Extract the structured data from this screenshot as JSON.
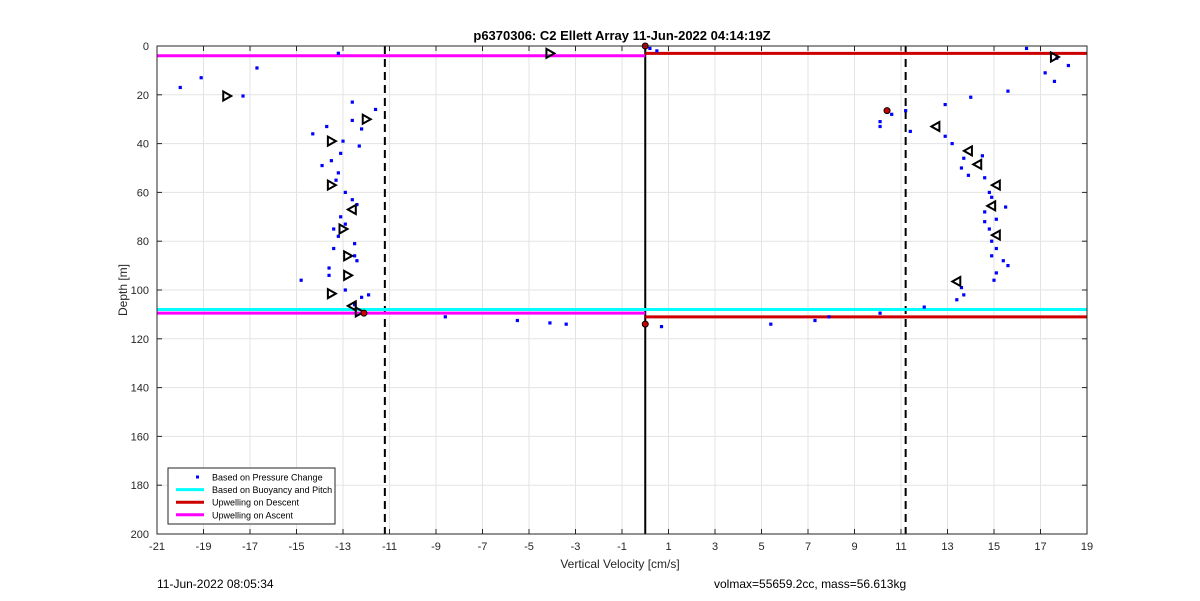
{
  "footer": {
    "timestamp": "11-Jun-2022 08:05:34",
    "info": "volmax=55659.2cc, mass=56.613kg"
  },
  "chart_data": {
    "type": "scatter",
    "title": "p6370306: C2 Ellett Array 11-Jun-2022 04:14:19Z",
    "xlabel": "Vertical Velocity [cm/s]",
    "ylabel": "Depth [m]",
    "xlim": [
      -21,
      19
    ],
    "ylim": [
      200,
      0
    ],
    "y_reversed": true,
    "xticks": [
      -21,
      -19,
      -17,
      -15,
      -13,
      -11,
      -9,
      -7,
      -5,
      -3,
      -1,
      1,
      3,
      5,
      7,
      9,
      11,
      13,
      15,
      17,
      19
    ],
    "yticks": [
      0,
      20,
      40,
      60,
      80,
      100,
      120,
      140,
      160,
      180,
      200
    ],
    "grid": true,
    "legend_position": "bottom-left",
    "legend": [
      {
        "label": "Based on Pressure Change",
        "kind": "dot",
        "color": "#0000ff"
      },
      {
        "label": "Based on Buoyancy and Pitch",
        "kind": "line",
        "color": "#00ffff"
      },
      {
        "label": "Upwelling on Descent",
        "kind": "line",
        "color": "#cc0000"
      },
      {
        "label": "Upwelling on Ascent",
        "kind": "line",
        "color": "#ff00ff"
      }
    ],
    "series": [
      {
        "name": "Based on Pressure Change",
        "marker": "dot",
        "color": "#0000ff",
        "points": [
          [
            -20,
            17
          ],
          [
            -19.1,
            13
          ],
          [
            -17.3,
            20.5
          ],
          [
            -16.7,
            9
          ],
          [
            -13.2,
            3
          ],
          [
            -12.6,
            23
          ],
          [
            -12.6,
            30.5
          ],
          [
            -11.6,
            26
          ],
          [
            -12.3,
            41
          ],
          [
            -12.2,
            34
          ],
          [
            -14.3,
            36
          ],
          [
            -13.7,
            33
          ],
          [
            -13,
            39
          ],
          [
            -13.1,
            44
          ],
          [
            -13.5,
            47
          ],
          [
            -13.9,
            49
          ],
          [
            -13.2,
            52
          ],
          [
            -13.3,
            55
          ],
          [
            -12.9,
            60
          ],
          [
            -12.6,
            63
          ],
          [
            -12.4,
            65
          ],
          [
            -13.1,
            70
          ],
          [
            -12.9,
            73
          ],
          [
            -13.4,
            75
          ],
          [
            -13.2,
            78
          ],
          [
            -12.5,
            81
          ],
          [
            -13.4,
            83
          ],
          [
            -12.5,
            86
          ],
          [
            -12.4,
            88
          ],
          [
            -13.6,
            91
          ],
          [
            -13.6,
            94
          ],
          [
            -14.8,
            96
          ],
          [
            -12.9,
            100
          ],
          [
            -12.2,
            103
          ],
          [
            -11.9,
            102
          ],
          [
            -12.5,
            106
          ],
          [
            -8.6,
            111
          ],
          [
            -5.5,
            112.5
          ],
          [
            -4.1,
            113.5
          ],
          [
            -3.4,
            114
          ],
          [
            0.2,
            1
          ],
          [
            0.5,
            2
          ],
          [
            0.7,
            115
          ],
          [
            5.4,
            114
          ],
          [
            7.3,
            112.5
          ],
          [
            7.9,
            111
          ],
          [
            10.1,
            109.5
          ],
          [
            10.1,
            31
          ],
          [
            10.1,
            33
          ],
          [
            10.6,
            28
          ],
          [
            11.2,
            26.5
          ],
          [
            11.4,
            35
          ],
          [
            12,
            107
          ],
          [
            12.9,
            24
          ],
          [
            12.9,
            37
          ],
          [
            13.2,
            40
          ],
          [
            13.6,
            50
          ],
          [
            13.7,
            46
          ],
          [
            14,
            21
          ],
          [
            13.9,
            53
          ],
          [
            13.4,
            104
          ],
          [
            13.6,
            99
          ],
          [
            13.7,
            102
          ],
          [
            14.5,
            45
          ],
          [
            14.6,
            54
          ],
          [
            14.8,
            60
          ],
          [
            14.9,
            62
          ],
          [
            14.6,
            68
          ],
          [
            15.1,
            71
          ],
          [
            15.5,
            66
          ],
          [
            14.6,
            72
          ],
          [
            14.8,
            75
          ],
          [
            14.9,
            80
          ],
          [
            15.1,
            83
          ],
          [
            14.9,
            86
          ],
          [
            15.4,
            88
          ],
          [
            15.6,
            90
          ],
          [
            15.1,
            93
          ],
          [
            15.0,
            96
          ],
          [
            15.6,
            18.5
          ],
          [
            16.4,
            1
          ],
          [
            17.2,
            11
          ],
          [
            17.6,
            14.5
          ],
          [
            17.7,
            5
          ],
          [
            18.2,
            8
          ]
        ]
      },
      {
        "name": "Ascent velocity markers",
        "marker": "triangle-right",
        "color": "#000000",
        "points": [
          [
            -18,
            20.5
          ],
          [
            -12,
            30
          ],
          [
            -13.5,
            39
          ],
          [
            -13.5,
            57
          ],
          [
            -13,
            75
          ],
          [
            -12.8,
            86
          ],
          [
            -12.8,
            94
          ],
          [
            -13.5,
            101.5
          ],
          [
            -12.3,
            109
          ],
          [
            -4.1,
            3
          ],
          [
            17.6,
            4.5
          ]
        ]
      },
      {
        "name": "Descent velocity markers",
        "marker": "triangle-left",
        "color": "#000000",
        "points": [
          [
            12.5,
            33
          ],
          [
            13.9,
            43
          ],
          [
            14.3,
            48.5
          ],
          [
            15.1,
            57
          ],
          [
            14.9,
            65.5
          ],
          [
            15.1,
            77.5
          ],
          [
            13.4,
            96.5
          ],
          [
            -12.6,
            67
          ],
          [
            -12.6,
            106.5
          ]
        ]
      },
      {
        "name": "Red circle markers",
        "marker": "circle",
        "color": "#cc0000",
        "points": [
          [
            10.4,
            26.5
          ],
          [
            -12.1,
            109.5
          ],
          [
            0.0,
            114
          ],
          [
            0.0,
            0
          ]
        ]
      }
    ],
    "hlines": [
      {
        "name": "Upwelling on Ascent",
        "color": "#ff00ff",
        "y": 4,
        "x": [
          -21,
          0
        ]
      },
      {
        "name": "Upwelling on Descent",
        "color": "#cc0000",
        "y": 3,
        "x": [
          0,
          19
        ]
      },
      {
        "name": "Based on Buoyancy and Pitch",
        "color": "#00ffff",
        "y": 108,
        "x": [
          -21,
          19
        ]
      },
      {
        "name": "Upwelling on Ascent",
        "color": "#ff00ff",
        "y": 109.5,
        "x": [
          -21,
          0
        ]
      },
      {
        "name": "Upwelling on Descent",
        "color": "#cc0000",
        "y": 111,
        "x": [
          0,
          19
        ]
      }
    ],
    "vlines": [
      {
        "x": 0,
        "style": "solid",
        "color": "#000000"
      },
      {
        "x": -11.2,
        "style": "dashed",
        "color": "#000000"
      },
      {
        "x": 11.2,
        "style": "dashed",
        "color": "#000000"
      }
    ]
  }
}
